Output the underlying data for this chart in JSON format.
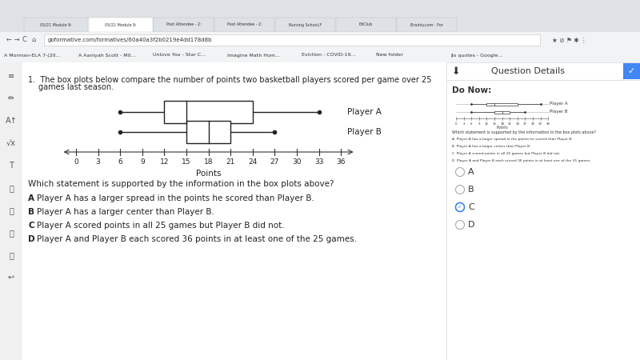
{
  "figsize": [
    8.0,
    4.5
  ],
  "dpi": 100,
  "bg_page": "#e8e8e8",
  "bg_browser_top": "#dee1e6",
  "bg_toolbar": "#f1f3f4",
  "bg_sidebar": "#f0f0f0",
  "bg_main": "#ffffff",
  "bg_right_panel": "#ffffff",
  "browser_tab_active": "#ffffff",
  "browser_tab_inactive": "#dee1e6",
  "title_text": "1.  The box plots below compare the number of points two basketball players scored per game over 25\n    games last season.",
  "question_text": "Which statement is supported by the information in the box plots above?",
  "choice_a": "Player A has a larger spread in the points he scored than Player B.",
  "choice_b": "Player A has a larger center than Player B.",
  "choice_c": "Player A scored points in all 25 games but Player B did not.",
  "choice_d": "Player A and Player B each scored 36 points in at least one of the 25 games.",
  "xlabel": "Points",
  "x_ticks": [
    0,
    3,
    6,
    9,
    12,
    15,
    18,
    21,
    24,
    27,
    30,
    33,
    36
  ],
  "player_a": {
    "label": "Player A",
    "min": 6,
    "q1": 12,
    "median": 15,
    "q3": 24,
    "max": 33
  },
  "player_b": {
    "label": "Player B",
    "min": 6,
    "q1": 15,
    "median": 18,
    "q3": 21,
    "max": 27
  },
  "right_panel_title": "Question Details",
  "right_panel_subtitle": "Do Now:",
  "selected_answer": "C",
  "answer_choices": [
    "A",
    "B",
    "C",
    "D"
  ],
  "url_bar": "goformative.com/formatives/60a40a3f2b0219e4dd178d8b",
  "tab_labels": [
    "05/21 Module 9:",
    "05/21 Module 9:",
    "Post Attendee - 2:",
    "Post Attendee - 2:",
    "Nursing School, F",
    "EdClub",
    "Brainly.com - For"
  ],
  "bookmarks": [
    "Morman-ELA 7-(20...",
    "Aaniyah Scott - M0...",
    "Unlove You - Star C...",
    "Imagine Math Hom...",
    "Eviction - COVID-19...",
    "New folder",
    "jlo quotes - Google..."
  ],
  "blue_btn": "#4285f4",
  "accent_blue": "#1a73e8",
  "sidebar_icon_color": "#555555",
  "line_color_main": "#333333",
  "grid_color": "#cccccc"
}
